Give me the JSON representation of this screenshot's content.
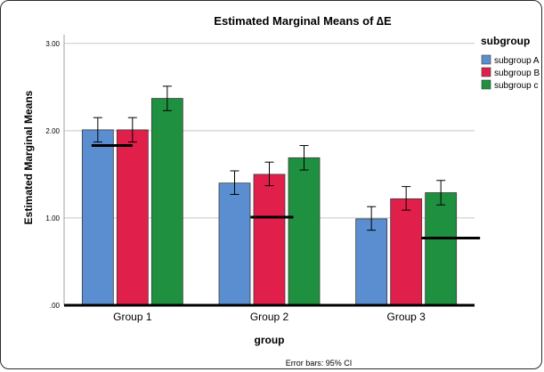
{
  "chart_data": {
    "type": "bar",
    "title": "Estimated Marginal Means of ∆E",
    "xlabel": "group",
    "ylabel": "Estimated Marginal Means",
    "categories": [
      "Group 1",
      "Group 2",
      "Group 3"
    ],
    "series": [
      {
        "name": "subgroup A",
        "color": "#5b8ed1",
        "values": [
          2.01,
          1.4,
          0.99
        ],
        "ci_low": [
          1.87,
          1.27,
          0.86
        ],
        "ci_high": [
          2.15,
          1.54,
          1.13
        ]
      },
      {
        "name": "subgroup B",
        "color": "#e0204a",
        "values": [
          2.01,
          1.5,
          1.22
        ],
        "ci_low": [
          1.87,
          1.37,
          1.09
        ],
        "ci_high": [
          2.15,
          1.64,
          1.36
        ]
      },
      {
        "name": "subgroup c",
        "color": "#1f9040",
        "values": [
          2.37,
          1.69,
          1.29
        ],
        "ci_low": [
          2.23,
          1.55,
          1.15
        ],
        "ci_high": [
          2.51,
          1.83,
          1.43
        ]
      }
    ],
    "reference_lines": [
      {
        "category": "Group 1",
        "value": 1.83
      },
      {
        "category": "Group 2",
        "value": 1.01
      },
      {
        "category": "Group 3",
        "value": 0.77
      }
    ],
    "ylim": [
      0,
      3.1
    ],
    "yticks": [
      0,
      1,
      2,
      3
    ],
    "ytick_labels": [
      ".00",
      "1.00",
      "2.00",
      "3.00"
    ],
    "grid": true,
    "legend": {
      "title": "subgroup",
      "position": "right"
    },
    "footnote": "Error bars: 95% CI"
  }
}
